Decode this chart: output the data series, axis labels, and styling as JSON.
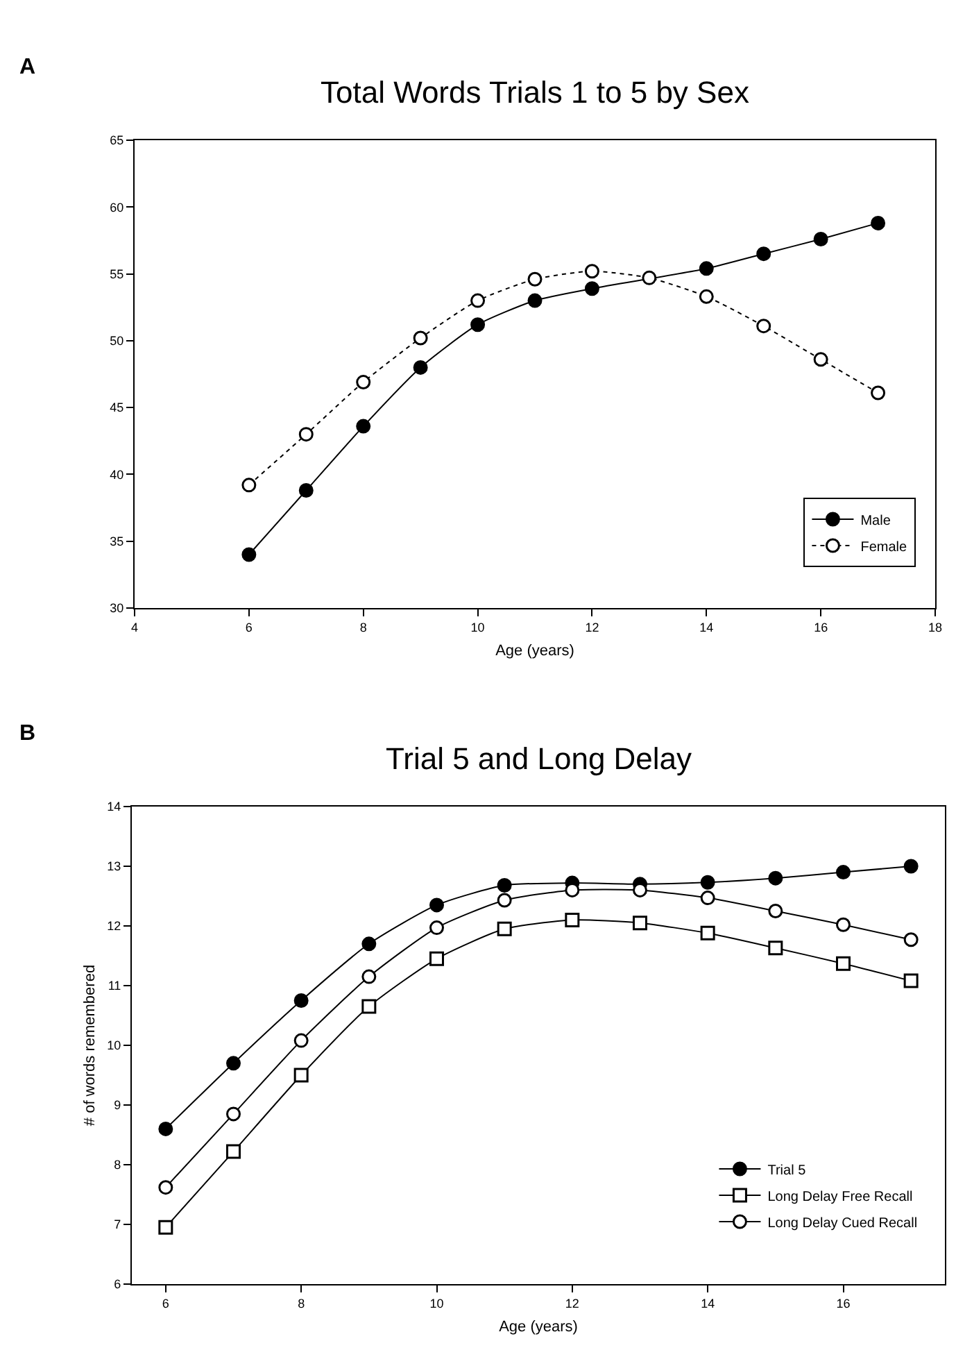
{
  "chart_data": [
    {
      "type": "line",
      "title": "Total Words Trials 1 to 5 by Sex",
      "xlabel": "Age (years)",
      "annotations": [
        "A"
      ],
      "x": [
        6,
        7,
        8,
        9,
        10,
        11,
        12,
        13,
        14,
        15,
        16,
        17
      ],
      "series": [
        {
          "name": "Male",
          "color": "#000000",
          "marker": "circle",
          "line_style": "solid",
          "values": [
            34,
            38.8,
            43.6,
            48,
            51.2,
            53,
            53.9,
            null,
            55.4,
            56.5,
            57.6,
            58.8
          ]
        },
        {
          "name": "Female",
          "color": "#000000",
          "marker": "circle",
          "line_style": "dotted",
          "values": [
            39.2,
            43,
            46.9,
            50.2,
            53,
            54.6,
            55.2,
            54.7,
            53.3,
            51.1,
            48.6,
            46.1
          ]
        }
      ],
      "xlim": [
        4,
        18
      ],
      "xticks": [
        4,
        6,
        8,
        10,
        12,
        14,
        16,
        18
      ],
      "ylim": [
        30,
        65
      ],
      "yticks": [
        30,
        35,
        40,
        45,
        50,
        55,
        60,
        65
      ],
      "grid": false,
      "legend": "bottom right"
    },
    {
      "type": "line",
      "title": "Trial 5 and Long Delay",
      "xlabel": "Age (years)",
      "ylabel": "# of words remembered",
      "annotations": [
        "B"
      ],
      "x": [
        6,
        7,
        8,
        9,
        10,
        11,
        12,
        13,
        14,
        15,
        16,
        17
      ],
      "series": [
        {
          "name": "Trial 5",
          "color": "#000000",
          "marker": "circle",
          "line_style": "solid",
          "values": [
            8.6,
            9.7,
            10.75,
            11.7,
            12.35,
            12.68,
            12.72,
            12.7,
            12.73,
            12.8,
            12.9,
            13.0
          ]
        },
        {
          "name": "Long Delay Free Recall",
          "color": "#000000",
          "marker": "square",
          "line_style": "solid",
          "values": [
            6.95,
            8.22,
            9.5,
            10.65,
            11.45,
            11.95,
            12.1,
            12.05,
            11.88,
            11.63,
            11.37,
            11.08
          ]
        },
        {
          "name": "Long Delay Cued Recall",
          "color": "#000000",
          "marker": "circle",
          "line_style": "solid",
          "values": [
            7.62,
            8.85,
            10.08,
            11.15,
            11.97,
            12.43,
            12.6,
            12.6,
            12.47,
            12.25,
            12.02,
            11.77
          ]
        }
      ],
      "xlim": [
        5.5,
        17.5
      ],
      "xticks": [
        6,
        8,
        10,
        12,
        14,
        16
      ],
      "ylim": [
        6,
        14
      ],
      "yticks": [
        6,
        7,
        8,
        9,
        10,
        11,
        12,
        13,
        14
      ],
      "grid": false,
      "legend": "bottom right"
    }
  ]
}
